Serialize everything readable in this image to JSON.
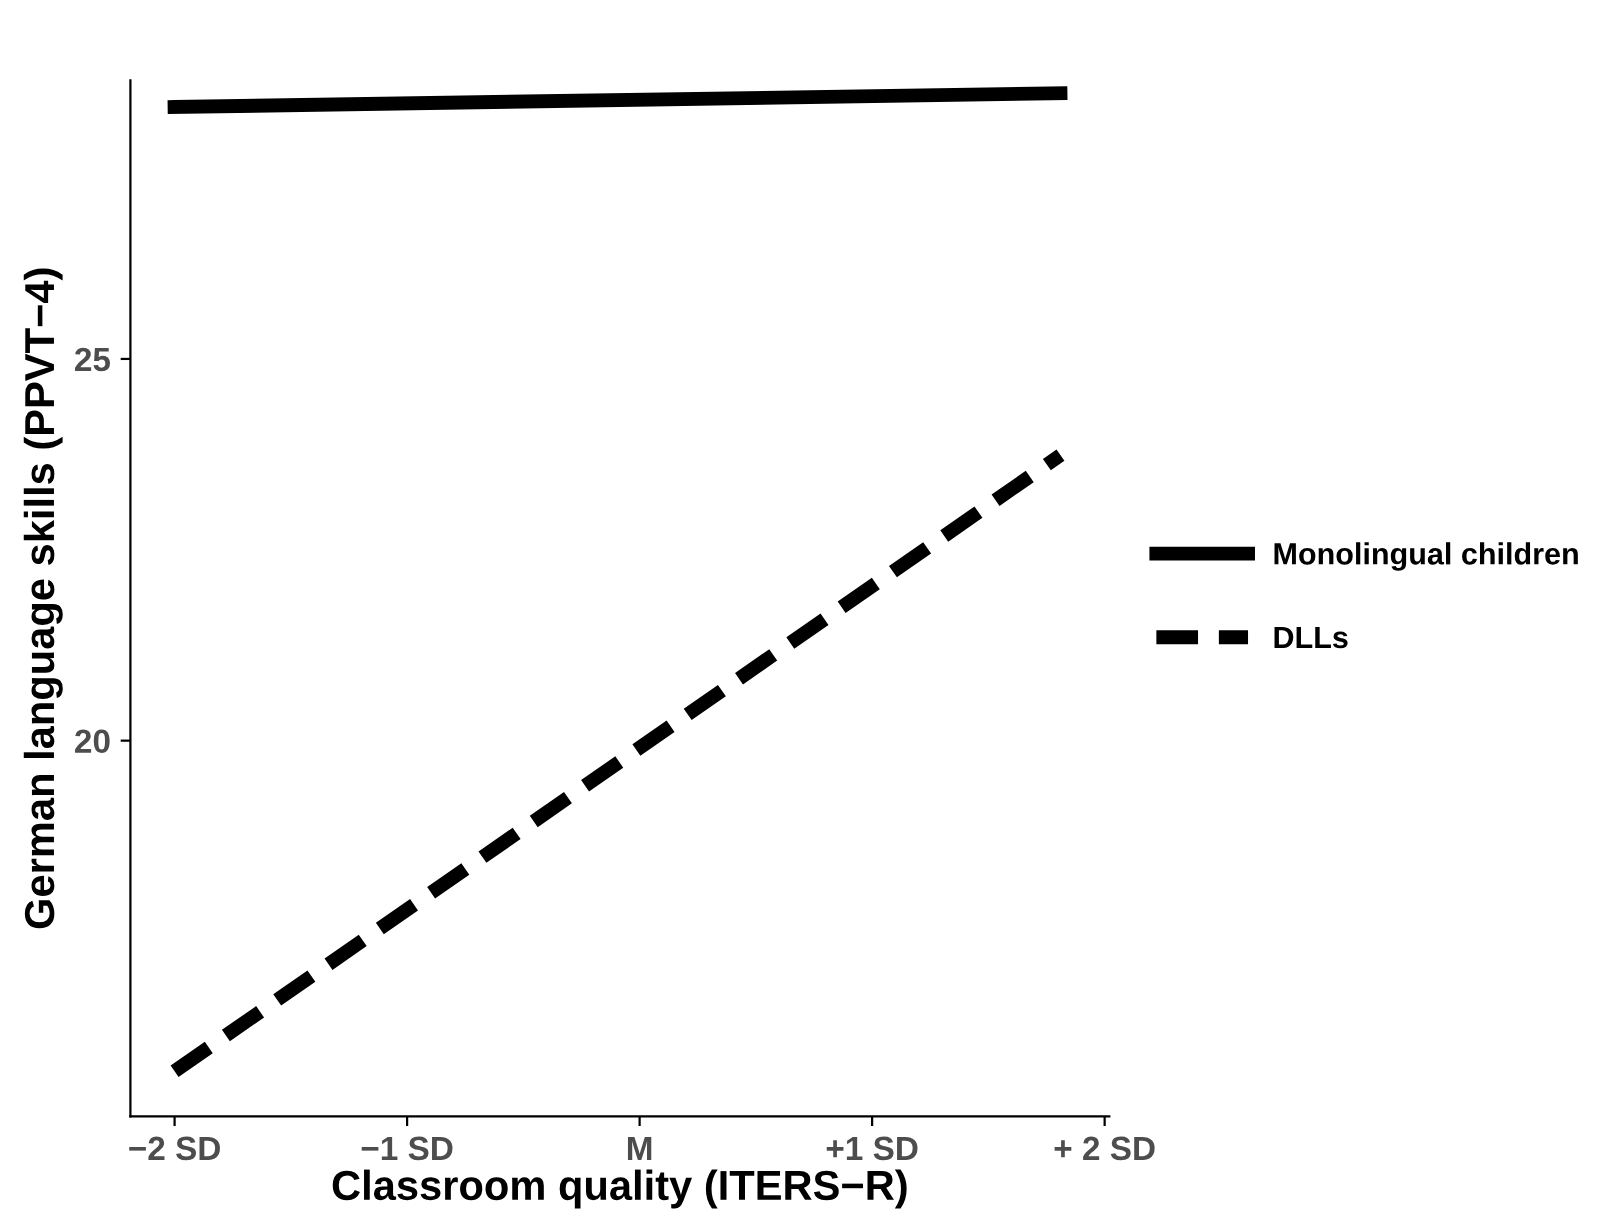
{
  "chart_data": {
    "type": "line",
    "xlabel": "Classroom quality (ITERS−R)",
    "ylabel": "German language skills (PPVT−4)",
    "x": [
      -2,
      1.81
    ],
    "xlim": [
      -2.19,
      2.02
    ],
    "ylim": [
      15.08,
      28.65
    ],
    "xticks": [
      {
        "value": -2,
        "label": "−2 SD"
      },
      {
        "value": -1,
        "label": "−1 SD"
      },
      {
        "value": 0,
        "label": "M"
      },
      {
        "value": 1,
        "label": "+1 SD"
      },
      {
        "value": 2,
        "label": "+ 2 SD"
      }
    ],
    "yticks": [
      20,
      25
    ],
    "series": [
      {
        "name": "Monolingual children",
        "color": "#000000",
        "values": [
          28.3,
          28.48
        ],
        "line_style": "solid"
      },
      {
        "name": "DLLs",
        "color": "#000000",
        "values": [
          15.67,
          23.74
        ],
        "line_style": "dashed"
      }
    ],
    "grid": false,
    "legend": "right",
    "marker": "none"
  }
}
